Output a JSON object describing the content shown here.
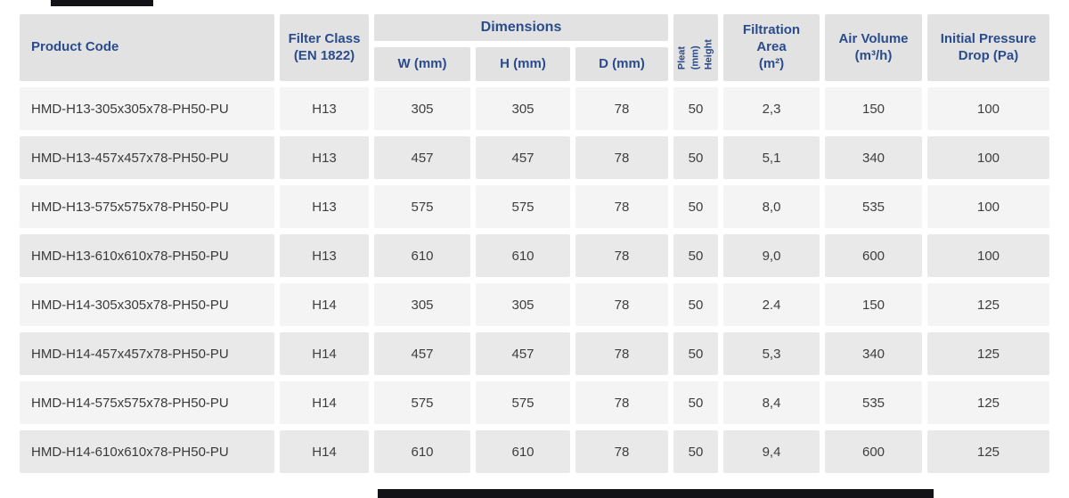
{
  "colors": {
    "header_text": "#2b4c8c",
    "header_bg": "#e2e2e2",
    "row_odd_bg": "#f4f4f4",
    "row_even_bg": "#e9e9e9",
    "data_text": "#3e3e3e",
    "crop_bar": "#131317"
  },
  "table": {
    "headers": {
      "product_code": "Product Code",
      "filter_class": "Filter Class\n(EN 1822)",
      "dimensions": "Dimensions",
      "w": "W (mm)",
      "h": "H (mm)",
      "d": "D (mm)",
      "pleat": "Pleat (mm)\nHeight",
      "filtration_area": "Filtration\nArea\n(m²)",
      "air_volume": "Air Volume\n(m³/h)",
      "pressure_drop": "Initial Pressure\nDrop (Pa)"
    },
    "rows": [
      {
        "code": "HMD-H13-305x305x78-PH50-PU",
        "fc": "H13",
        "w": "305",
        "h": "305",
        "d": "78",
        "pleat": "50",
        "area": "2,3",
        "air": "150",
        "drop": "100"
      },
      {
        "code": "HMD-H13-457x457x78-PH50-PU",
        "fc": "H13",
        "w": "457",
        "h": "457",
        "d": "78",
        "pleat": "50",
        "area": "5,1",
        "air": "340",
        "drop": "100"
      },
      {
        "code": "HMD-H13-575x575x78-PH50-PU",
        "fc": "H13",
        "w": "575",
        "h": "575",
        "d": "78",
        "pleat": "50",
        "area": "8,0",
        "air": "535",
        "drop": "100"
      },
      {
        "code": "HMD-H13-610x610x78-PH50-PU",
        "fc": "H13",
        "w": "610",
        "h": "610",
        "d": "78",
        "pleat": "50",
        "area": "9,0",
        "air": "600",
        "drop": "100"
      },
      {
        "code": "HMD-H14-305x305x78-PH50-PU",
        "fc": "H14",
        "w": "305",
        "h": "305",
        "d": "78",
        "pleat": "50",
        "area": "2.4",
        "air": "150",
        "drop": "125"
      },
      {
        "code": "HMD-H14-457x457x78-PH50-PU",
        "fc": "H14",
        "w": "457",
        "h": "457",
        "d": "78",
        "pleat": "50",
        "area": "5,3",
        "air": "340",
        "drop": "125"
      },
      {
        "code": "HMD-H14-575x575x78-PH50-PU",
        "fc": "H14",
        "w": "575",
        "h": "575",
        "d": "78",
        "pleat": "50",
        "area": "8,4",
        "air": "535",
        "drop": "125"
      },
      {
        "code": "HMD-H14-610x610x78-PH50-PU",
        "fc": "H14",
        "w": "610",
        "h": "610",
        "d": "78",
        "pleat": "50",
        "area": "9,4",
        "air": "600",
        "drop": "125"
      }
    ]
  }
}
